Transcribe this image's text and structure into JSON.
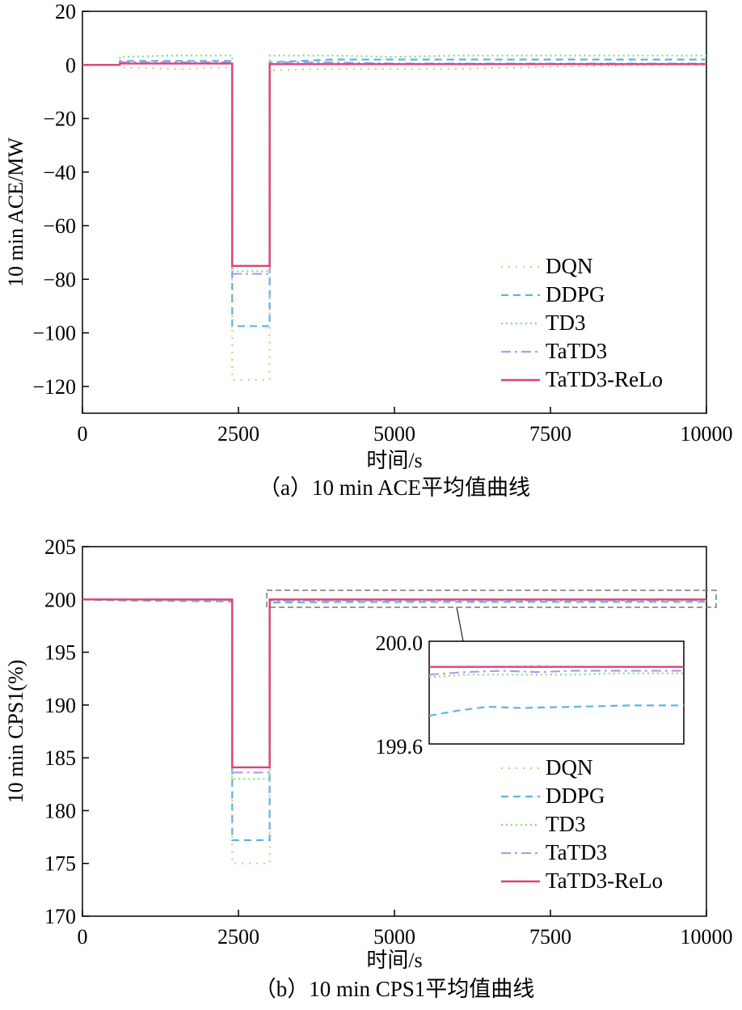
{
  "series_styles": [
    {
      "name": "DQN",
      "color": "#f5b97a",
      "dash": "2 7",
      "width": 2.2
    },
    {
      "name": "DDPG",
      "color": "#5cb6e0",
      "dash": "9 6",
      "width": 2.2
    },
    {
      "name": "TD3",
      "color": "#7ee07e",
      "dash": "2 4",
      "width": 2.2
    },
    {
      "name": "TaTD3",
      "color": "#b59be6",
      "dash": "12 5 3 5",
      "width": 2.2
    },
    {
      "name": "TaTD3-ReLo",
      "color": "#e0407a",
      "dash": "",
      "width": 2.4
    }
  ],
  "chart_data": [
    {
      "type": "line",
      "caption": "（a）10 min ACE平均值曲线",
      "xlabel": "时间/s",
      "ylabel": "10 min ACE/MW",
      "xlim": [
        0,
        10000
      ],
      "ylim": [
        -130,
        20
      ],
      "xticks": [
        0,
        2500,
        5000,
        7500,
        10000
      ],
      "yticks": [
        -120,
        -100,
        -80,
        -60,
        -40,
        -20,
        0,
        20
      ],
      "ytick_labels": [
        "−120",
        "−100",
        "−80",
        "−60",
        "−40",
        "−20",
        "0",
        "20"
      ],
      "legend_position": "bottom-right",
      "series": [
        {
          "name": "DQN",
          "points": [
            [
              0,
              0
            ],
            [
              600,
              0
            ],
            [
              600,
              -1
            ],
            [
              1500,
              -1.5
            ],
            [
              2400,
              -1
            ],
            [
              2400,
              -117.5
            ],
            [
              3000,
              -117.5
            ],
            [
              3000,
              -2
            ],
            [
              4000,
              -1.5
            ],
            [
              5000,
              -1.5
            ],
            [
              6000,
              -1.5
            ],
            [
              7000,
              -1
            ],
            [
              8000,
              -0.5
            ],
            [
              9000,
              0
            ],
            [
              10000,
              0
            ]
          ]
        },
        {
          "name": "DDPG",
          "points": [
            [
              0,
              0
            ],
            [
              600,
              0
            ],
            [
              600,
              1.5
            ],
            [
              1500,
              1.5
            ],
            [
              2400,
              1.5
            ],
            [
              2400,
              -97.5
            ],
            [
              3000,
              -97.5
            ],
            [
              3000,
              1
            ],
            [
              4000,
              2
            ],
            [
              5000,
              2
            ],
            [
              6000,
              2
            ],
            [
              7000,
              2
            ],
            [
              8000,
              2
            ],
            [
              9000,
              2
            ],
            [
              10000,
              2
            ]
          ]
        },
        {
          "name": "TD3",
          "points": [
            [
              0,
              0
            ],
            [
              600,
              0
            ],
            [
              600,
              3
            ],
            [
              1500,
              3.5
            ],
            [
              2400,
              3.5
            ],
            [
              2400,
              -77
            ],
            [
              3000,
              -77
            ],
            [
              3000,
              3.5
            ],
            [
              4000,
              3.5
            ],
            [
              5000,
              3
            ],
            [
              6000,
              3.5
            ],
            [
              7000,
              3.5
            ],
            [
              8000,
              3.5
            ],
            [
              9000,
              3.5
            ],
            [
              10000,
              3.5
            ]
          ]
        },
        {
          "name": "TaTD3",
          "points": [
            [
              0,
              0
            ],
            [
              600,
              0
            ],
            [
              600,
              1
            ],
            [
              1500,
              1
            ],
            [
              2400,
              1
            ],
            [
              2400,
              -78
            ],
            [
              3000,
              -78
            ],
            [
              3000,
              1
            ],
            [
              4000,
              1
            ],
            [
              5000,
              0.5
            ],
            [
              6000,
              0.5
            ],
            [
              7000,
              0.5
            ],
            [
              8000,
              0.5
            ],
            [
              9000,
              0.5
            ],
            [
              10000,
              0.5
            ]
          ]
        },
        {
          "name": "TaTD3-ReLo",
          "points": [
            [
              0,
              0
            ],
            [
              600,
              0
            ],
            [
              600,
              0.5
            ],
            [
              1500,
              0.5
            ],
            [
              2400,
              0.5
            ],
            [
              2400,
              -75
            ],
            [
              3000,
              -75
            ],
            [
              3000,
              0.3
            ],
            [
              4000,
              0.3
            ],
            [
              5000,
              0.3
            ],
            [
              6000,
              0.3
            ],
            [
              7000,
              0.3
            ],
            [
              8000,
              0.3
            ],
            [
              9000,
              0.3
            ],
            [
              10000,
              0.3
            ]
          ]
        }
      ]
    },
    {
      "type": "line",
      "caption": "（b）10 min CPS1平均值曲线",
      "xlabel": "时间/s",
      "ylabel": "10 min CPS1(%)",
      "xlim": [
        0,
        10000
      ],
      "ylim": [
        170,
        205
      ],
      "xticks": [
        0,
        2500,
        5000,
        7500,
        10000
      ],
      "yticks": [
        170,
        175,
        180,
        185,
        190,
        195,
        200,
        205
      ],
      "ytick_labels": [
        "170",
        "175",
        "180",
        "185",
        "190",
        "195",
        "200",
        "205"
      ],
      "legend_position": "bottom-right",
      "series": [
        {
          "name": "DQN",
          "points": [
            [
              0,
              200
            ],
            [
              2400,
              199.9
            ],
            [
              2400,
              175
            ],
            [
              3000,
              175
            ],
            [
              3000,
              199.9
            ],
            [
              10000,
              199.95
            ]
          ]
        },
        {
          "name": "DDPG",
          "points": [
            [
              0,
              200
            ],
            [
              600,
              199.9
            ],
            [
              2400,
              199.8
            ],
            [
              2400,
              177.2
            ],
            [
              3000,
              177.2
            ],
            [
              3000,
              199.7
            ],
            [
              4000,
              199.75
            ],
            [
              10000,
              199.77
            ]
          ]
        },
        {
          "name": "TD3",
          "points": [
            [
              0,
              200
            ],
            [
              2400,
              199.9
            ],
            [
              2400,
              183
            ],
            [
              3000,
              183
            ],
            [
              3000,
              199.9
            ],
            [
              10000,
              199.88
            ]
          ]
        },
        {
          "name": "TaTD3",
          "points": [
            [
              0,
              200
            ],
            [
              2400,
              199.95
            ],
            [
              2400,
              183.6
            ],
            [
              3000,
              183.6
            ],
            [
              3000,
              199.9
            ],
            [
              10000,
              199.92
            ]
          ]
        },
        {
          "name": "TaTD3-ReLo",
          "points": [
            [
              0,
              200
            ],
            [
              2400,
              200
            ],
            [
              2400,
              184.1
            ],
            [
              3000,
              184.1
            ],
            [
              3000,
              200
            ],
            [
              10000,
              200
            ]
          ]
        }
      ],
      "inset": {
        "xlim": [
          3000,
          10000
        ],
        "ylim": [
          199.6,
          200.0
        ],
        "ytick_labels": [
          "200.0",
          "199.6"
        ],
        "series": [
          {
            "name": "DQN",
            "points": [
              [
                3000,
                199.9
              ],
              [
                4500,
                199.9
              ],
              [
                6000,
                199.905
              ],
              [
                7500,
                199.9
              ],
              [
                9000,
                199.9
              ],
              [
                10000,
                199.9
              ]
            ]
          },
          {
            "name": "DDPG",
            "points": [
              [
                3000,
                199.71
              ],
              [
                3800,
                199.73
              ],
              [
                4600,
                199.745
              ],
              [
                5500,
                199.74
              ],
              [
                7000,
                199.745
              ],
              [
                8500,
                199.75
              ],
              [
                10000,
                199.75
              ]
            ]
          },
          {
            "name": "TD3",
            "points": [
              [
                3000,
                199.86
              ],
              [
                4000,
                199.87
              ],
              [
                5000,
                199.87
              ],
              [
                6000,
                199.87
              ],
              [
                7000,
                199.87
              ],
              [
                8000,
                199.875
              ],
              [
                10000,
                199.875
              ]
            ]
          },
          {
            "name": "TaTD3",
            "points": [
              [
                3000,
                199.87
              ],
              [
                4000,
                199.88
              ],
              [
                5000,
                199.885
              ],
              [
                6000,
                199.88
              ],
              [
                7000,
                199.885
              ],
              [
                8000,
                199.885
              ],
              [
                10000,
                199.885
              ]
            ]
          },
          {
            "name": "TaTD3-ReLo",
            "points": [
              [
                3000,
                199.9
              ],
              [
                10000,
                199.9
              ]
            ]
          }
        ]
      }
    }
  ]
}
